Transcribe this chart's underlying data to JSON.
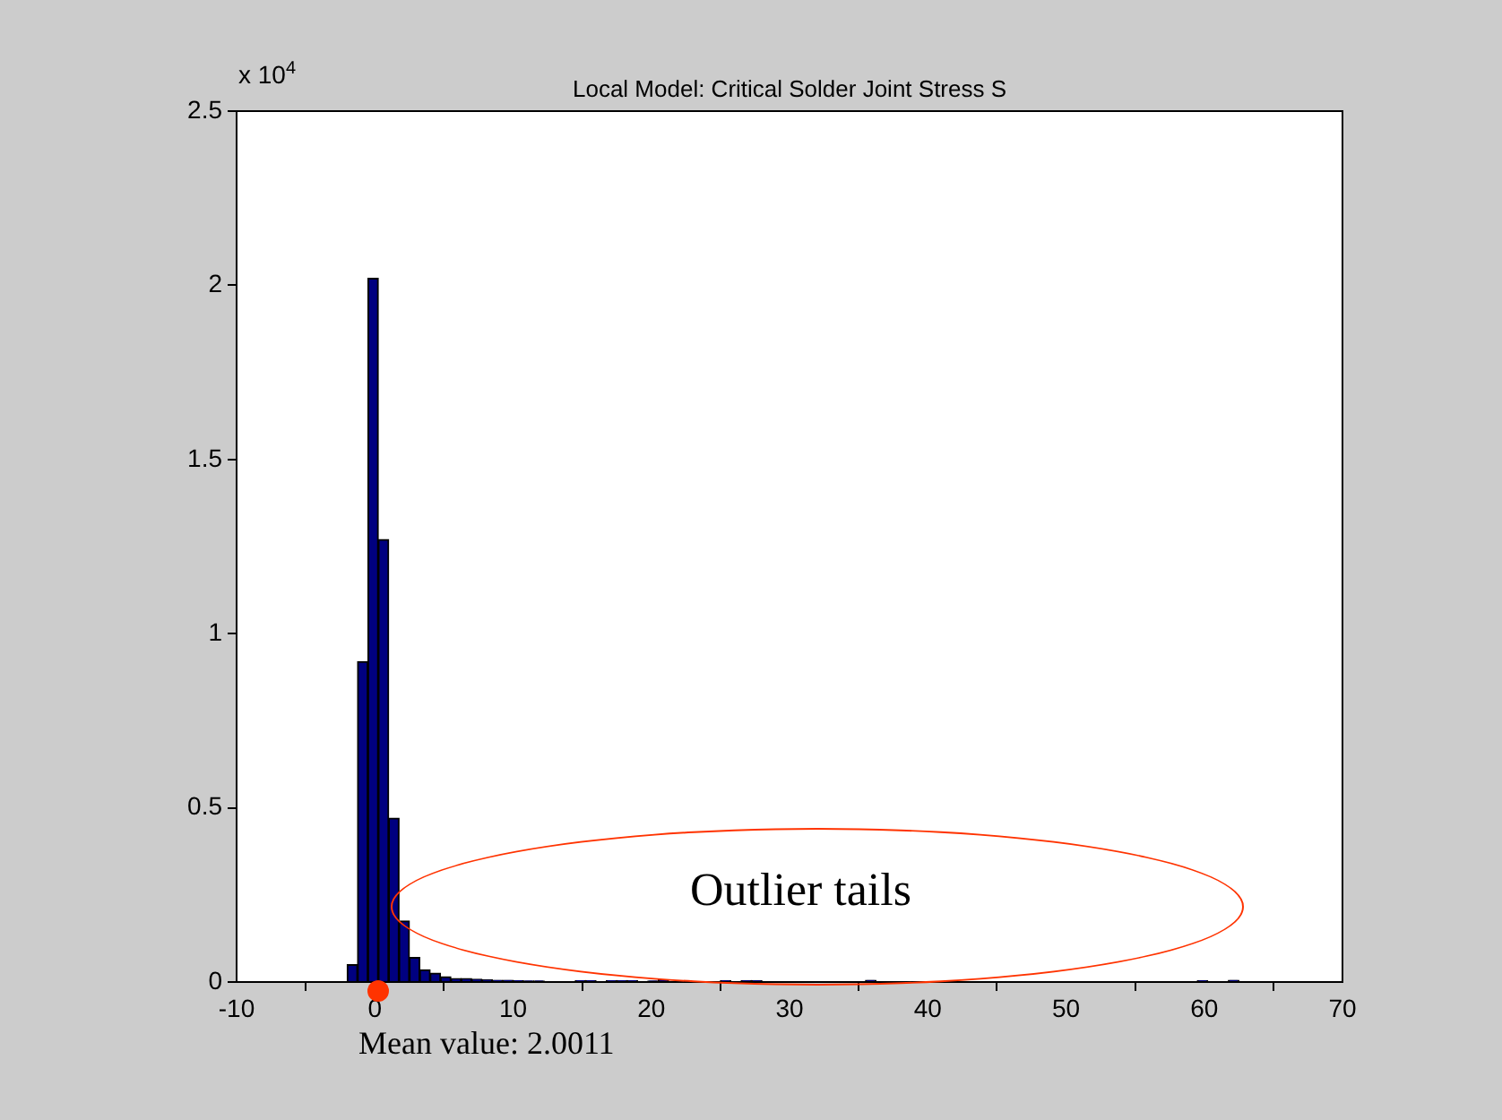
{
  "chart_data": {
    "type": "histogram",
    "title": "Local Model: Critical Solder Joint Stress S",
    "bins": [
      -2,
      -1.25,
      -0.5,
      0.25,
      1,
      1.75,
      2.5,
      3.25,
      4,
      4.75,
      5.5,
      6.25,
      7,
      7.75,
      8.5,
      9.25,
      10,
      10.75,
      11.5,
      12.25,
      13,
      13.75,
      14.5,
      15.25,
      16,
      16.75,
      17.5,
      18.25,
      19,
      19.75,
      20.5,
      21.25,
      22,
      22.75,
      23.5,
      24.25,
      25,
      25.75,
      26.5,
      27.25,
      28,
      28.75,
      29.5,
      30.25,
      31,
      31.75,
      32.5,
      33.25,
      34,
      34.75,
      35.5,
      36.25,
      37,
      37.75,
      38.5,
      39.25,
      40,
      40.75,
      41.5,
      42.25,
      43,
      43.75,
      44.5,
      45.25,
      46,
      46.75,
      47.5,
      48.25,
      49,
      49.75,
      50.5,
      51.25,
      52,
      52.75,
      53.5,
      54.25,
      55,
      55.75,
      56.5,
      57.25,
      58,
      58.75,
      59.5,
      60.25,
      61,
      61.75,
      62.5,
      63.25
    ],
    "values": [
      0.05,
      0.92,
      2.02,
      1.27,
      0.47,
      0.175,
      0.07,
      0.035,
      0.025,
      0.015,
      0.01,
      0.01,
      0.008,
      0.006,
      0.005,
      0.005,
      0.004,
      0.003,
      0.003,
      0.002,
      0.002,
      0,
      0.004,
      0.004,
      0,
      0.004,
      0.004,
      0.004,
      0,
      0.003,
      0.006,
      0,
      0,
      0,
      0,
      0,
      0.004,
      0,
      0.004,
      0.004,
      0,
      0,
      0,
      0,
      0,
      0,
      0,
      0,
      0,
      0,
      0.005,
      0,
      0,
      0,
      0,
      0,
      0,
      0,
      0,
      0,
      0,
      0,
      0,
      0,
      0,
      0,
      0,
      0,
      0,
      0,
      0,
      0,
      0,
      0,
      0,
      0,
      0,
      0,
      0,
      0,
      0,
      0,
      0.004,
      0,
      0,
      0.005,
      0
    ],
    "color": "#000080",
    "xlim": [
      -10,
      70
    ],
    "xticks": [
      -10,
      0,
      10,
      20,
      30,
      40,
      50,
      60,
      70
    ],
    "ylim": [
      0,
      2.5
    ],
    "yticks": [
      0,
      0.5,
      1,
      1.5,
      2,
      2.5
    ],
    "grid": false,
    "legend": false,
    "annotations": [
      "x 10$^{4}$",
      "Outlier tails",
      "Mean value: 2.0011"
    ]
  }
}
